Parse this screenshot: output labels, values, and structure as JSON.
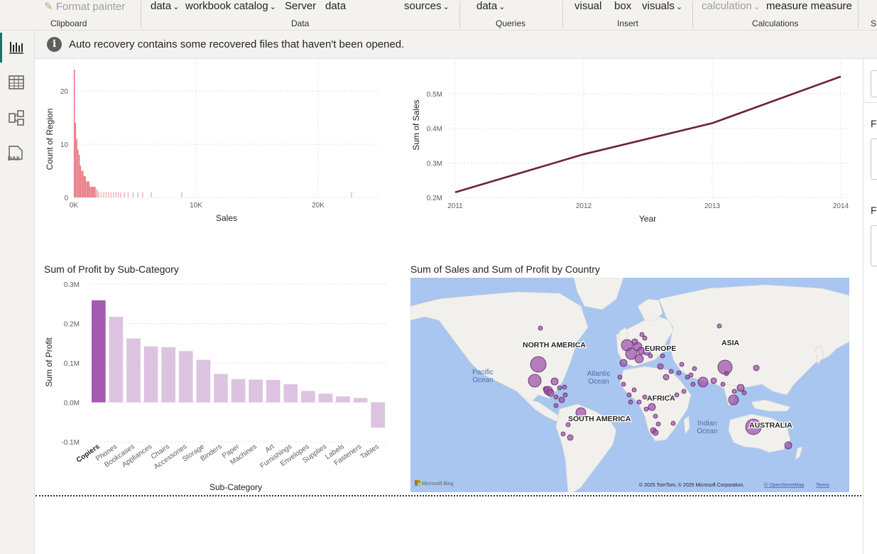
{
  "ribbon": {
    "clipboard": {
      "item": "Format painter",
      "group": "Clipboard"
    },
    "data": {
      "items": [
        "data",
        "workbook catalog",
        "Server",
        "data",
        "sources"
      ],
      "group": "Data"
    },
    "queries": {
      "item": "data",
      "group": "Queries"
    },
    "insert": {
      "items": [
        "visual",
        "box",
        "visuals"
      ],
      "group": "Insert"
    },
    "calculations": {
      "items": [
        "calculation",
        "measure measure"
      ],
      "group": "Calculations"
    },
    "next_group": "S"
  },
  "banner": {
    "text": "Auto recovery contains some recovered files that haven't been opened.",
    "icon": "info-icon"
  },
  "right_pane": {
    "labels": [
      "Fi",
      "Fi"
    ]
  },
  "colors": {
    "histogram": "#e8707a",
    "line": "#6b2430",
    "bar_highlight": "#a35bb0",
    "bar": "#dcc3e0",
    "bubble": "#9b4aa8",
    "accent": "#117865"
  },
  "visuals": {
    "histogram": {
      "title": ""
    },
    "line": {
      "title": ""
    },
    "bar": {
      "title": "Sum of Profit by Sub-Category"
    },
    "map": {
      "title": "Sum of Sales and Sum of Profit by Country",
      "labels": {
        "north_america": "NORTH AMERICA",
        "europe": "EUROPE",
        "asia": "ASIA",
        "africa": "AFRICA",
        "south_america": "SOUTH AMERICA",
        "australia": "AUSTRALIA",
        "pacific": "Pacific\nOcean",
        "atlantic": "Atlantic\nOcean",
        "indian": "Indian\nOcean"
      },
      "logo": "Microsoft Bing",
      "attribution": "© 2025 TomTom, © 2025 Microsoft Corporation,",
      "osm": "© OpenStreetMap",
      "terms": "Terms"
    }
  },
  "chart_data": [
    {
      "type": "bar",
      "title": "",
      "xlabel": "Sales",
      "ylabel": "Count of Region",
      "x_ticks": [
        "0K",
        "10K",
        "20K"
      ],
      "y_ticks": [
        "0",
        "10",
        "20"
      ],
      "xlim": [
        0,
        25000
      ],
      "ylim": [
        0,
        24
      ],
      "bin_width": 100,
      "bins": [
        {
          "x": 0,
          "count": 24
        },
        {
          "x": 100,
          "count": 14
        },
        {
          "x": 200,
          "count": 11
        },
        {
          "x": 300,
          "count": 9
        },
        {
          "x": 400,
          "count": 8
        },
        {
          "x": 500,
          "count": 6
        },
        {
          "x": 600,
          "count": 5
        },
        {
          "x": 700,
          "count": 5
        },
        {
          "x": 800,
          "count": 4
        },
        {
          "x": 900,
          "count": 4
        },
        {
          "x": 1000,
          "count": 3
        },
        {
          "x": 1100,
          "count": 3
        },
        {
          "x": 1200,
          "count": 3
        },
        {
          "x": 1300,
          "count": 2
        },
        {
          "x": 1400,
          "count": 2
        },
        {
          "x": 1500,
          "count": 2
        },
        {
          "x": 1600,
          "count": 2
        },
        {
          "x": 1700,
          "count": 2
        },
        {
          "x": 1800,
          "count": 1.5
        },
        {
          "x": 1900,
          "count": 1.5
        },
        {
          "x": 2000,
          "count": 1
        },
        {
          "x": 2200,
          "count": 1
        },
        {
          "x": 2400,
          "count": 1
        },
        {
          "x": 2600,
          "count": 1
        },
        {
          "x": 2800,
          "count": 1
        },
        {
          "x": 3000,
          "count": 1
        },
        {
          "x": 3200,
          "count": 1
        },
        {
          "x": 3400,
          "count": 1
        },
        {
          "x": 3600,
          "count": 1
        },
        {
          "x": 3800,
          "count": 1
        },
        {
          "x": 4100,
          "count": 1
        },
        {
          "x": 4400,
          "count": 1
        },
        {
          "x": 4800,
          "count": 1
        },
        {
          "x": 5200,
          "count": 1
        },
        {
          "x": 5600,
          "count": 1
        },
        {
          "x": 6300,
          "count": 1
        },
        {
          "x": 8800,
          "count": 1
        },
        {
          "x": 22700,
          "count": 1
        }
      ]
    },
    {
      "type": "line",
      "title": "",
      "xlabel": "Year",
      "ylabel": "Sum of Sales",
      "x": [
        2011,
        2012,
        2013,
        2014
      ],
      "y_ticks": [
        "0.2M",
        "0.3M",
        "0.4M",
        "0.5M"
      ],
      "x_ticks": [
        "2011",
        "2012",
        "2013",
        "2014"
      ],
      "ylim": [
        200000,
        570000
      ],
      "series": [
        {
          "values": [
            215000,
            325000,
            415000,
            550000
          ]
        }
      ],
      "grid": true
    },
    {
      "type": "bar",
      "title": "Sum of Profit by Sub-Category",
      "xlabel": "Sub-Category",
      "ylabel": "Sum of Profit",
      "categories": [
        "Copiers",
        "Phones",
        "Bookcases",
        "Appliances",
        "Chairs",
        "Accessories",
        "Storage",
        "Binders",
        "Paper",
        "Machines",
        "Art",
        "Furnishings",
        "Envelopes",
        "Supplies",
        "Labels",
        "Fasteners",
        "Tables"
      ],
      "values": [
        259000,
        217000,
        162000,
        142000,
        140000,
        130000,
        108000,
        72000,
        59000,
        58000,
        57000,
        46000,
        29000,
        22000,
        15000,
        11000,
        -64000
      ],
      "y_ticks": [
        "-0.1M",
        "0.0M",
        "0.1M",
        "0.2M",
        "0.3M"
      ],
      "ylim": [
        -100000,
        300000
      ],
      "grid": true
    }
  ]
}
